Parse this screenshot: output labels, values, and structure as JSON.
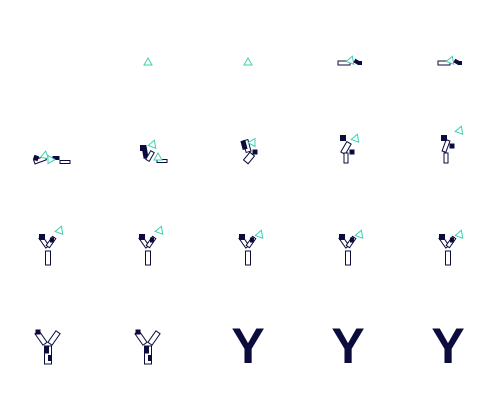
{
  "frames": {
    "letters": [
      "Y",
      "Y",
      "Y"
    ]
  }
}
